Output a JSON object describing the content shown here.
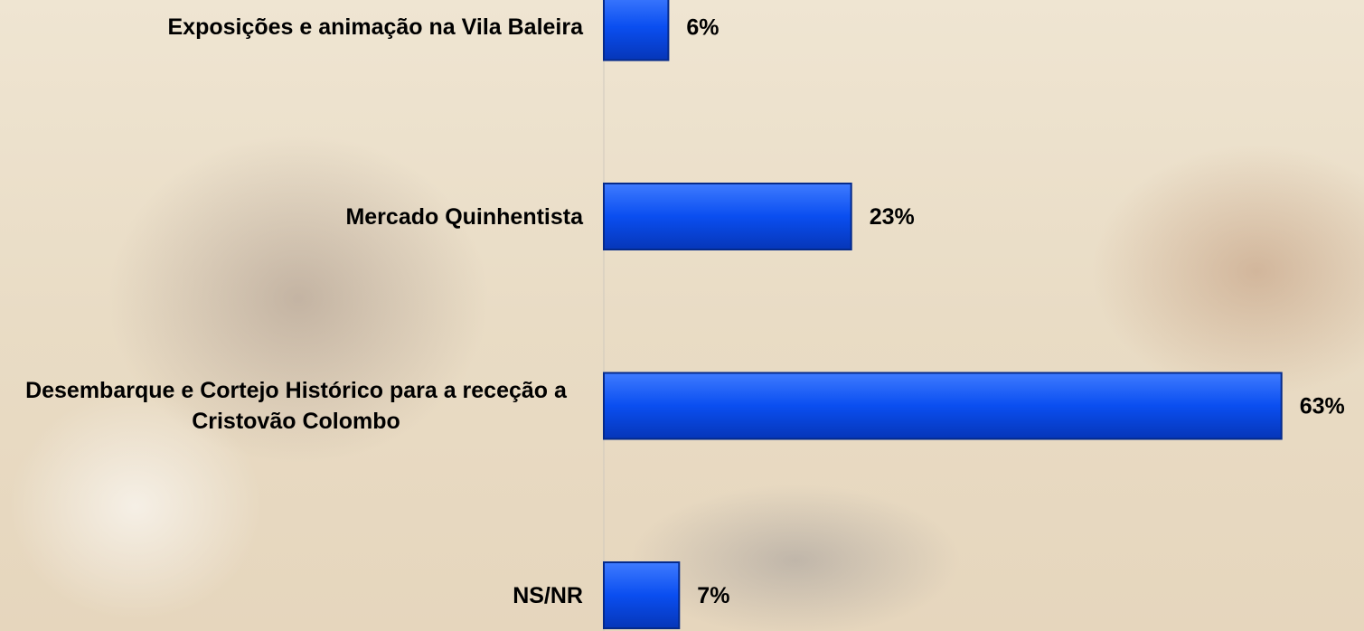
{
  "chart_data": {
    "type": "bar",
    "orientation": "horizontal",
    "categories": [
      "Exposições e animação na Vila Baleira",
      "Mercado Quinhentista",
      "Desembarque e Cortejo Histórico para a receção a Cristovão Colombo",
      "NS/NR"
    ],
    "values": [
      6,
      23,
      63,
      7
    ],
    "value_labels": [
      "6%",
      "23%",
      "63%",
      "7%"
    ],
    "color": "#0a4ef0"
  }
}
